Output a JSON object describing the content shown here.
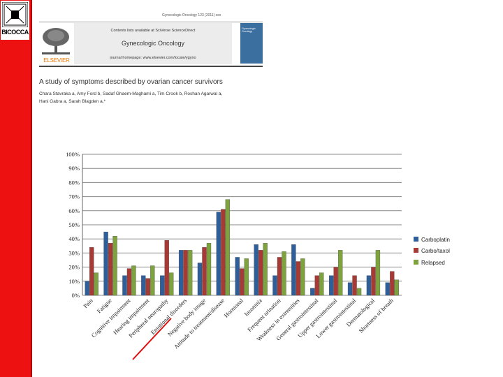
{
  "logo": {
    "text": "BICOCCA"
  },
  "journal": {
    "pub_info": "Gynecologic Oncology 123 (2011) xxx",
    "contents_line": "Contents lists available at SciVerse ScienceDirect",
    "title": "Gynecologic Oncology",
    "homepage": "journal homepage: www.elsevier.com/locate/ygyno",
    "publisher": "ELSEVIER",
    "cover_title": "Gynecologic Oncology"
  },
  "article": {
    "title": "A study of symptoms described by ovarian cancer survivors",
    "authors": [
      "Chara Stavraka a, Amy Ford b, Sadaf Ghaem-Maghami a, Tim Crook b, Roshan Agarwal a,",
      "Hani Gabra a, Sarah Blagden a,*"
    ]
  },
  "colors": {
    "red_bar": "#ee1111",
    "carboplatin": "#2f5f9a",
    "carbotaxol": "#a83a36",
    "relapsed": "#7ea33e",
    "grid": "#888888",
    "annotation_line": "#dd1111"
  },
  "chart_data": {
    "type": "bar",
    "title": "",
    "xlabel": "",
    "ylabel": "",
    "ylim": [
      0,
      100
    ],
    "yticks": [
      "0%",
      "10%",
      "20%",
      "30%",
      "40%",
      "50%",
      "60%",
      "70%",
      "80%",
      "90%",
      "100%"
    ],
    "legend_position": "right",
    "categories": [
      "Pain",
      "Fatigue",
      "Cognitive impairment",
      "Hearing impairment",
      "Peripheral neuropathy",
      "Emotional disorders",
      "Negative body image",
      "Attitude to treatment/disease",
      "Hormonal",
      "Insomnia",
      "Frequent urination",
      "Weakness in extremities",
      "General gastrointestinal",
      "Upper gastrointestinal",
      "Lower gastrointestinal",
      "Dermatological",
      "Shortness of breath"
    ],
    "series": [
      {
        "name": "Carboplatin",
        "values": [
          10,
          45,
          14,
          14,
          14,
          32,
          23,
          59,
          27,
          36,
          14,
          36,
          5,
          14,
          9,
          14,
          9
        ]
      },
      {
        "name": "Carbo/taxol",
        "values": [
          34,
          37,
          19,
          12,
          39,
          32,
          34,
          61,
          19,
          32,
          27,
          24,
          14,
          20,
          14,
          20,
          17
        ]
      },
      {
        "name": "Relapsed",
        "values": [
          16,
          42,
          21,
          21,
          16,
          32,
          37,
          68,
          26,
          37,
          31,
          26,
          16,
          32,
          5,
          32,
          11
        ]
      }
    ],
    "annotation": "Peripheral neuropathy underlined in red"
  }
}
